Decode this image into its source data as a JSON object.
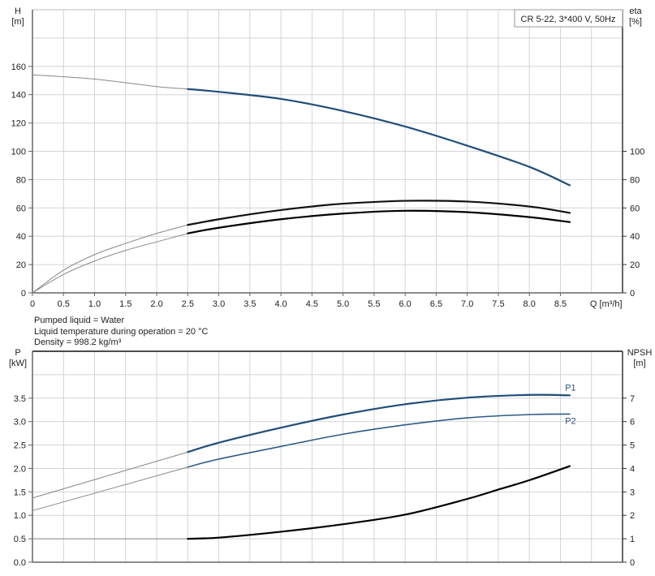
{
  "chart_data": [
    {
      "type": "line",
      "title": "CR 5-22, 3*400 V, 50Hz",
      "xlabel": "Q [m³/h]",
      "ylabel": "H\n[m]",
      "ylabel_right": "eta\n[%]",
      "xlim": [
        0,
        9.5
      ],
      "ylim": [
        0,
        200
      ],
      "ylim_right": [
        0,
        200
      ],
      "x_ticks": [
        "0",
        "0.5",
        "1.0",
        "1.5",
        "2.0",
        "2.5",
        "3.0",
        "3.5",
        "4.0",
        "4.5",
        "5.0",
        "5.5",
        "6.0",
        "6.5",
        "7.0",
        "7.5",
        "8.0",
        "8.5"
      ],
      "y_ticks": [
        0,
        20,
        40,
        60,
        80,
        100,
        120,
        140,
        160
      ],
      "y_ticks_right": [
        0,
        20,
        40,
        60,
        80,
        100
      ],
      "grid": true,
      "legend": "top-right",
      "operating_range_start_q": 2.5,
      "series": [
        {
          "axis": "left",
          "color": "#1f4e79",
          "x": [
            0,
            1,
            2,
            2.5,
            3,
            4,
            5,
            6,
            7,
            8,
            8.65
          ],
          "y": [
            154,
            151,
            145.7,
            144,
            142,
            137,
            128.5,
            117.5,
            104,
            89,
            76
          ]
        },
        {
          "axis": "right",
          "color": "#111111",
          "x": [
            0,
            0.5,
            1,
            1.5,
            2,
            2.5,
            3,
            3.5,
            4,
            4.5,
            5,
            6,
            7,
            8,
            8.65
          ],
          "y": [
            0,
            16,
            27,
            35,
            42,
            48,
            52,
            55.5,
            58.5,
            61,
            63,
            65,
            64.5,
            61,
            56.5
          ]
        },
        {
          "axis": "right",
          "color": "#000000",
          "x": [
            0,
            0.5,
            1,
            1.5,
            2,
            2.5,
            3,
            4,
            5,
            6,
            7,
            8,
            8.65
          ],
          "y": [
            0,
            13,
            22.5,
            30,
            36,
            42,
            46,
            52,
            56,
            58,
            57,
            53.5,
            50
          ]
        }
      ]
    },
    {
      "type": "line",
      "xlabel": "",
      "ylabel": "P\n[kW]",
      "ylabel_right": "NPSH\n[m]",
      "xlim": [
        0,
        9.5
      ],
      "ylim": [
        0,
        4.5
      ],
      "ylim_right": [
        0,
        9
      ],
      "y_ticks": [
        "0.0",
        "0.5",
        "1.0",
        "1.5",
        "2.0",
        "2.5",
        "3.0",
        "3.5"
      ],
      "y_ticks_right": [
        "0",
        "1",
        "2",
        "3",
        "4",
        "5",
        "6",
        "7"
      ],
      "grid": true,
      "operating_range_start_q": 2.5,
      "series": [
        {
          "name": "P1",
          "axis": "left",
          "color": "#1f4e79",
          "x": [
            0,
            2.5,
            3,
            4,
            5,
            6,
            7,
            8,
            8.65
          ],
          "y": [
            1.37,
            2.35,
            2.55,
            2.87,
            3.15,
            3.37,
            3.51,
            3.57,
            3.56
          ]
        },
        {
          "name": "P2",
          "axis": "left",
          "color": "#2f5b86",
          "x": [
            0,
            2.5,
            3,
            4,
            5,
            6,
            7,
            8,
            8.65
          ],
          "y": [
            1.1,
            2.03,
            2.2,
            2.47,
            2.73,
            2.93,
            3.08,
            3.15,
            3.16
          ]
        },
        {
          "axis": "right",
          "color": "#000000",
          "x": [
            0,
            2.5,
            3,
            4,
            5,
            6,
            7,
            7.5,
            8,
            8.65
          ],
          "y": [
            1.0,
            1.0,
            1.05,
            1.3,
            1.62,
            2.03,
            2.7,
            3.1,
            3.5,
            4.1
          ]
        }
      ]
    }
  ],
  "info": {
    "line1": "Pumped liquid = Water",
    "line2": "Liquid temperature during operation = 20 °C",
    "line3": "Density = 998.2 kg/m³"
  }
}
